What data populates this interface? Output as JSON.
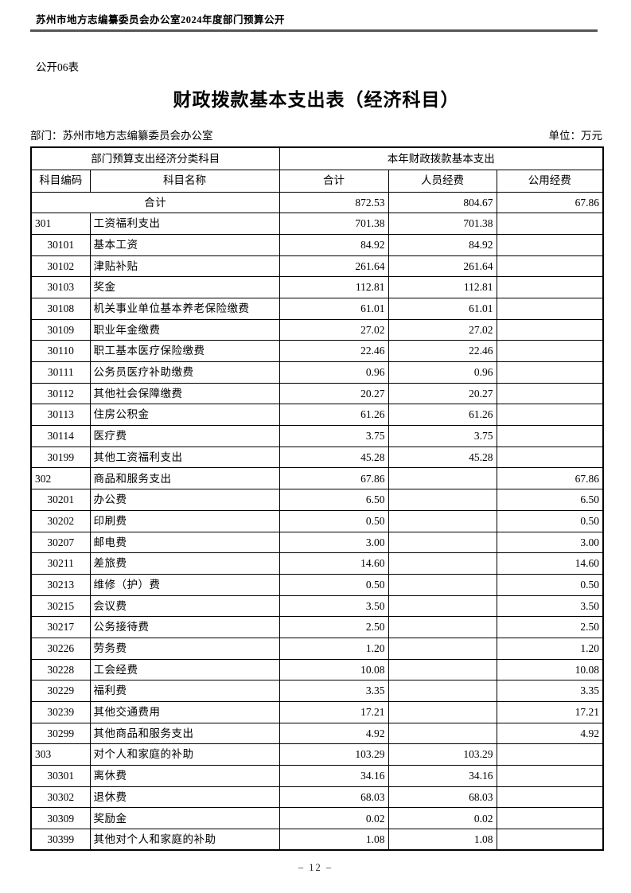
{
  "page": {
    "header": "苏州市地方志编纂委员会办公室2024年度部门预算公开",
    "form_label": "公开06表",
    "title": "财政拨款基本支出表（经济科目）",
    "department_label": "部门：苏州市地方志编纂委员会办公室",
    "unit_label": "单位：万元",
    "page_number": "– 12 –"
  },
  "table": {
    "header": {
      "group_subject": "部门预算支出经济分类科目",
      "group_expenditure": "本年财政拨款基本支出",
      "col_code": "科目编码",
      "col_name": "科目名称",
      "col_total": "合计",
      "col_personnel": "人员经费",
      "col_public": "公用经费"
    },
    "rows": [
      {
        "level": "grand",
        "code": "",
        "name": "合计",
        "total": "872.53",
        "personnel": "804.67",
        "public": "67.86"
      },
      {
        "level": "top",
        "code": "301",
        "name": "工资福利支出",
        "total": "701.38",
        "personnel": "701.38",
        "public": ""
      },
      {
        "level": "sub",
        "code": "30101",
        "name": "基本工资",
        "total": "84.92",
        "personnel": "84.92",
        "public": ""
      },
      {
        "level": "sub",
        "code": "30102",
        "name": "津贴补贴",
        "total": "261.64",
        "personnel": "261.64",
        "public": ""
      },
      {
        "level": "sub",
        "code": "30103",
        "name": "奖金",
        "total": "112.81",
        "personnel": "112.81",
        "public": ""
      },
      {
        "level": "sub",
        "code": "30108",
        "name": "机关事业单位基本养老保险缴费",
        "total": "61.01",
        "personnel": "61.01",
        "public": ""
      },
      {
        "level": "sub",
        "code": "30109",
        "name": "职业年金缴费",
        "total": "27.02",
        "personnel": "27.02",
        "public": ""
      },
      {
        "level": "sub",
        "code": "30110",
        "name": "职工基本医疗保险缴费",
        "total": "22.46",
        "personnel": "22.46",
        "public": ""
      },
      {
        "level": "sub",
        "code": "30111",
        "name": "公务员医疗补助缴费",
        "total": "0.96",
        "personnel": "0.96",
        "public": ""
      },
      {
        "level": "sub",
        "code": "30112",
        "name": "其他社会保障缴费",
        "total": "20.27",
        "personnel": "20.27",
        "public": ""
      },
      {
        "level": "sub",
        "code": "30113",
        "name": "住房公积金",
        "total": "61.26",
        "personnel": "61.26",
        "public": ""
      },
      {
        "level": "sub",
        "code": "30114",
        "name": "医疗费",
        "total": "3.75",
        "personnel": "3.75",
        "public": ""
      },
      {
        "level": "sub",
        "code": "30199",
        "name": "其他工资福利支出",
        "total": "45.28",
        "personnel": "45.28",
        "public": ""
      },
      {
        "level": "top",
        "code": "302",
        "name": "商品和服务支出",
        "total": "67.86",
        "personnel": "",
        "public": "67.86"
      },
      {
        "level": "sub",
        "code": "30201",
        "name": "办公费",
        "total": "6.50",
        "personnel": "",
        "public": "6.50"
      },
      {
        "level": "sub",
        "code": "30202",
        "name": "印刷费",
        "total": "0.50",
        "personnel": "",
        "public": "0.50"
      },
      {
        "level": "sub",
        "code": "30207",
        "name": "邮电费",
        "total": "3.00",
        "personnel": "",
        "public": "3.00"
      },
      {
        "level": "sub",
        "code": "30211",
        "name": "差旅费",
        "total": "14.60",
        "personnel": "",
        "public": "14.60"
      },
      {
        "level": "sub",
        "code": "30213",
        "name": "维修（护）费",
        "total": "0.50",
        "personnel": "",
        "public": "0.50"
      },
      {
        "level": "sub",
        "code": "30215",
        "name": "会议费",
        "total": "3.50",
        "personnel": "",
        "public": "3.50"
      },
      {
        "level": "sub",
        "code": "30217",
        "name": "公务接待费",
        "total": "2.50",
        "personnel": "",
        "public": "2.50"
      },
      {
        "level": "sub",
        "code": "30226",
        "name": "劳务费",
        "total": "1.20",
        "personnel": "",
        "public": "1.20"
      },
      {
        "level": "sub",
        "code": "30228",
        "name": "工会经费",
        "total": "10.08",
        "personnel": "",
        "public": "10.08"
      },
      {
        "level": "sub",
        "code": "30229",
        "name": "福利费",
        "total": "3.35",
        "personnel": "",
        "public": "3.35"
      },
      {
        "level": "sub",
        "code": "30239",
        "name": "其他交通费用",
        "total": "17.21",
        "personnel": "",
        "public": "17.21"
      },
      {
        "level": "sub",
        "code": "30299",
        "name": "其他商品和服务支出",
        "total": "4.92",
        "personnel": "",
        "public": "4.92"
      },
      {
        "level": "top",
        "code": "303",
        "name": "对个人和家庭的补助",
        "total": "103.29",
        "personnel": "103.29",
        "public": ""
      },
      {
        "level": "sub",
        "code": "30301",
        "name": "离休费",
        "total": "34.16",
        "personnel": "34.16",
        "public": ""
      },
      {
        "level": "sub",
        "code": "30302",
        "name": "退休费",
        "total": "68.03",
        "personnel": "68.03",
        "public": ""
      },
      {
        "level": "sub",
        "code": "30309",
        "name": "奖励金",
        "total": "0.02",
        "personnel": "0.02",
        "public": ""
      },
      {
        "level": "sub",
        "code": "30399",
        "name": "其他对个人和家庭的补助",
        "total": "1.08",
        "personnel": "1.08",
        "public": ""
      }
    ]
  }
}
